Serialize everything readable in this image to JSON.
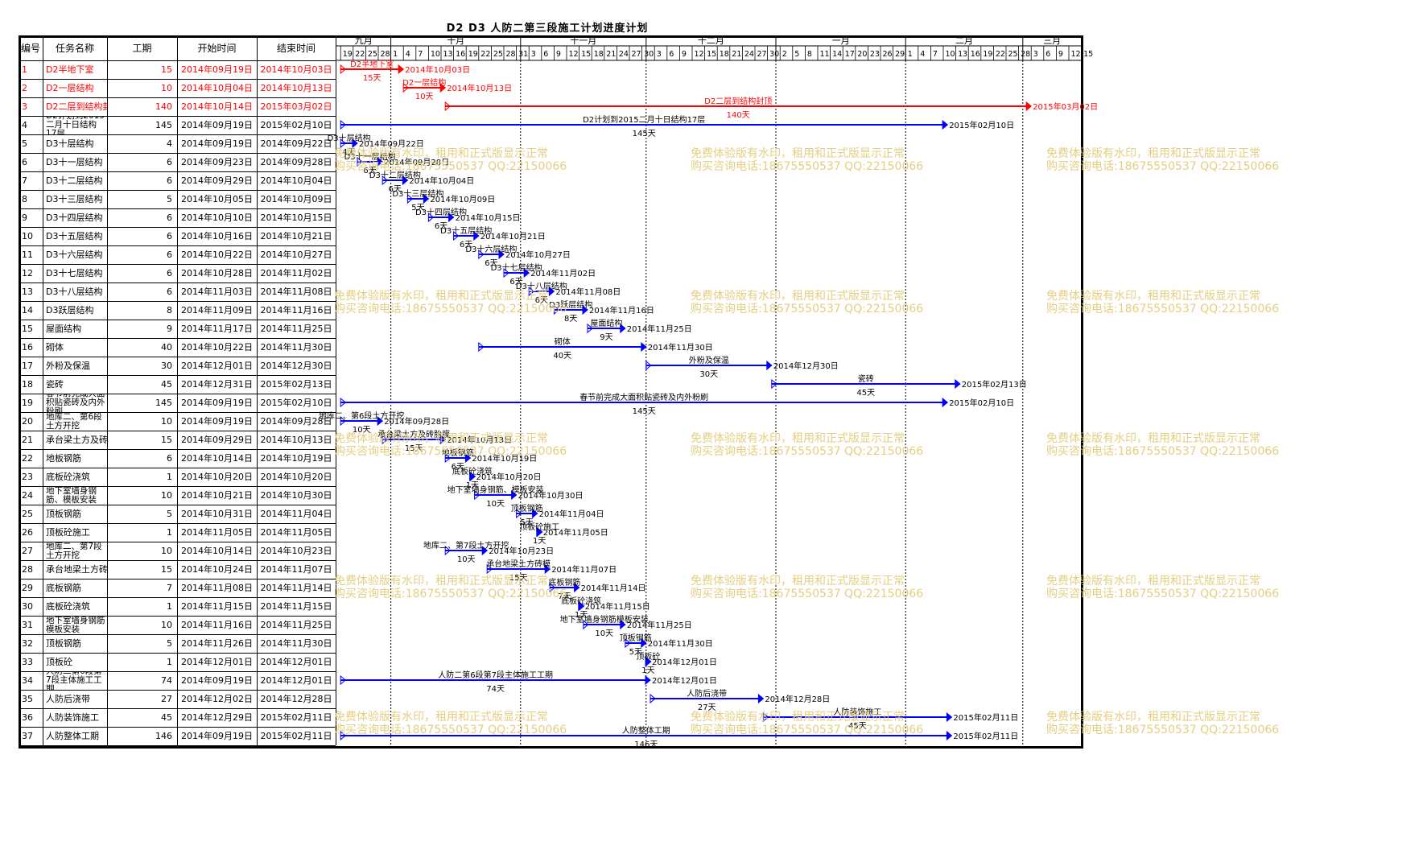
{
  "title": "D2  D3  人防二第三段施工计划进度计划",
  "headers": {
    "id": "编号",
    "name": "任务名称",
    "duration": "工期",
    "start": "开始时间",
    "end": "结束时间"
  },
  "months": [
    "九月",
    "十月",
    "十一月",
    "十二月",
    "一月",
    "二月",
    "三月"
  ],
  "day_ticks": [
    "19",
    "22",
    "25",
    "28",
    "1",
    "4",
    "7",
    "10",
    "13",
    "16",
    "19",
    "22",
    "25",
    "28",
    "31",
    "3",
    "6",
    "9",
    "12",
    "15",
    "18",
    "21",
    "24",
    "27",
    "30",
    "3",
    "6",
    "9",
    "12",
    "15",
    "18",
    "21",
    "24",
    "27",
    "30",
    "2",
    "5",
    "8",
    "11",
    "14",
    "17",
    "20",
    "23",
    "26",
    "29",
    "1",
    "4",
    "7",
    "10",
    "13",
    "16",
    "19",
    "22",
    "25",
    "28",
    "3",
    "6",
    "9",
    "12",
    "15"
  ],
  "tasks": [
    {
      "id": "1",
      "name": "D2半地下室",
      "duration": "15",
      "start": "2014年09月19日",
      "end": "2014年10月03日",
      "red": true,
      "bar_label": "D2半地下室",
      "end_label": "2014年10月03日",
      "dur_label": "15天"
    },
    {
      "id": "2",
      "name": "D2一层结构",
      "duration": "10",
      "start": "2014年10月04日",
      "end": "2014年10月13日",
      "red": true,
      "bar_label": "D2一层结构",
      "end_label": "2014年10月13日",
      "dur_label": "10天"
    },
    {
      "id": "3",
      "name": "D2二层到结构封顶",
      "duration": "140",
      "start": "2014年10月14日",
      "end": "2015年03月02日",
      "red": true,
      "bar_label": "D2二层到结构封顶",
      "end_label": "2015年03月02日",
      "dur_label": "140天"
    },
    {
      "id": "4",
      "name": "D2计划到2015二月十日结构17层",
      "duration": "145",
      "start": "2014年09月19日",
      "end": "2015年02月10日",
      "bar_label": "D2计划到2015二月十日结构17层",
      "end_label": "2015年02月10日",
      "dur_label": "145天"
    },
    {
      "id": "5",
      "name": "D3十层结构",
      "duration": "4",
      "start": "2014年09月19日",
      "end": "2014年09月22日",
      "bar_label": "D3十层结构",
      "end_label": "2014年09月22日",
      "dur_label": "4天"
    },
    {
      "id": "6",
      "name": "D3十一层结构",
      "duration": "6",
      "start": "2014年09月23日",
      "end": "2014年09月28日",
      "bar_label": "D3十一层结构",
      "end_label": "2014年09月28日",
      "dur_label": "6天"
    },
    {
      "id": "7",
      "name": "D3十二层结构",
      "duration": "6",
      "start": "2014年09月29日",
      "end": "2014年10月04日",
      "bar_label": "D3十二层结构",
      "end_label": "2014年10月04日",
      "dur_label": "6天"
    },
    {
      "id": "8",
      "name": "D3十三层结构",
      "duration": "5",
      "start": "2014年10月05日",
      "end": "2014年10月09日",
      "bar_label": "D3十三层结构",
      "end_label": "2014年10月09日",
      "dur_label": "5天"
    },
    {
      "id": "9",
      "name": "D3十四层结构",
      "duration": "6",
      "start": "2014年10月10日",
      "end": "2014年10月15日",
      "bar_label": "D3十四层结构",
      "end_label": "2014年10月15日",
      "dur_label": "6天"
    },
    {
      "id": "10",
      "name": "D3十五层结构",
      "duration": "6",
      "start": "2014年10月16日",
      "end": "2014年10月21日",
      "bar_label": "D3十五层结构",
      "end_label": "2014年10月21日",
      "dur_label": "6天"
    },
    {
      "id": "11",
      "name": "D3十六层结构",
      "duration": "6",
      "start": "2014年10月22日",
      "end": "2014年10月27日",
      "bar_label": "D3十六层结构",
      "end_label": "2014年10月27日",
      "dur_label": "6天"
    },
    {
      "id": "12",
      "name": "D3十七层结构",
      "duration": "6",
      "start": "2014年10月28日",
      "end": "2014年11月02日",
      "bar_label": "D3十七层结构",
      "end_label": "2014年11月02日",
      "dur_label": "6天"
    },
    {
      "id": "13",
      "name": "D3十八层结构",
      "duration": "6",
      "start": "2014年11月03日",
      "end": "2014年11月08日",
      "bar_label": "D3十八层结构",
      "end_label": "2014年11月08日",
      "dur_label": "6天"
    },
    {
      "id": "14",
      "name": "D3跃层结构",
      "duration": "8",
      "start": "2014年11月09日",
      "end": "2014年11月16日",
      "bar_label": "D3跃层结构",
      "end_label": "2014年11月16日",
      "dur_label": "8天"
    },
    {
      "id": "15",
      "name": "屋面结构",
      "duration": "9",
      "start": "2014年11月17日",
      "end": "2014年11月25日",
      "bar_label": "屋面结构",
      "end_label": "2014年11月25日",
      "dur_label": "9天"
    },
    {
      "id": "16",
      "name": "砌体",
      "duration": "40",
      "start": "2014年10月22日",
      "end": "2014年11月30日",
      "bar_label": "砌体",
      "end_label": "2014年11月30日",
      "dur_label": "40天"
    },
    {
      "id": "17",
      "name": "外粉及保温",
      "duration": "30",
      "start": "2014年12月01日",
      "end": "2014年12月30日",
      "bar_label": "外粉及保温",
      "end_label": "2014年12月30日",
      "dur_label": "30天"
    },
    {
      "id": "18",
      "name": "瓷砖",
      "duration": "45",
      "start": "2014年12月31日",
      "end": "2015年02月13日",
      "bar_label": "瓷砖",
      "end_label": "2015年02月13日",
      "dur_label": "45天"
    },
    {
      "id": "19",
      "name": "春节前完成大面积贴瓷砖及内外粉刷",
      "duration": "145",
      "start": "2014年09月19日",
      "end": "2015年02月10日",
      "bar_label": "春节前完成大面积贴瓷砖及内外粉刷",
      "end_label": "2015年02月10日",
      "dur_label": "145天"
    },
    {
      "id": "20",
      "name": "地库二、第6段土方开挖",
      "duration": "10",
      "start": "2014年09月19日",
      "end": "2014年09月28日",
      "bar_label": "地库二、第6段土方开挖",
      "end_label": "2014年09月28日",
      "dur_label": "10天"
    },
    {
      "id": "21",
      "name": "承台梁土方及砖胎膜",
      "duration": "15",
      "start": "2014年09月29日",
      "end": "2014年10月13日",
      "bar_label": "承台梁土方及砖胎膜",
      "end_label": "2014年10月13日",
      "dur_label": "15天"
    },
    {
      "id": "22",
      "name": "地板钢筋",
      "duration": "6",
      "start": "2014年10月14日",
      "end": "2014年10月19日",
      "bar_label": "地板钢筋",
      "end_label": "2014年10月19日",
      "dur_label": "6天"
    },
    {
      "id": "23",
      "name": "底板砼浇筑",
      "duration": "1",
      "start": "2014年10月20日",
      "end": "2014年10月20日",
      "bar_label": "底板砼浇筑",
      "end_label": "2014年10月20日",
      "dur_label": "1天"
    },
    {
      "id": "24",
      "name": "地下室墙身钢筋、模板安装",
      "duration": "10",
      "start": "2014年10月21日",
      "end": "2014年10月30日",
      "bar_label": "地下室墙身钢筋、模板安装",
      "end_label": "2014年10月30日",
      "dur_label": "10天"
    },
    {
      "id": "25",
      "name": "顶板钢筋",
      "duration": "5",
      "start": "2014年10月31日",
      "end": "2014年11月04日",
      "bar_label": "顶板钢筋",
      "end_label": "2014年11月04日",
      "dur_label": "5天"
    },
    {
      "id": "26",
      "name": "顶板砼施工",
      "duration": "1",
      "start": "2014年11月05日",
      "end": "2014年11月05日",
      "bar_label": "顶板砼施工",
      "end_label": "2014年11月05日",
      "dur_label": "1天"
    },
    {
      "id": "27",
      "name": "地库二、第7段土方开挖",
      "duration": "10",
      "start": "2014年10月14日",
      "end": "2014年10月23日",
      "bar_label": "地库二、第7段土方开挖",
      "end_label": "2014年10月23日",
      "dur_label": "10天"
    },
    {
      "id": "28",
      "name": "承台地梁土方砖模",
      "duration": "15",
      "start": "2014年10月24日",
      "end": "2014年11月07日",
      "bar_label": "承台地梁土方砖模",
      "end_label": "2014年11月07日",
      "dur_label": "15天"
    },
    {
      "id": "29",
      "name": "底板钢筋",
      "duration": "7",
      "start": "2014年11月08日",
      "end": "2014年11月14日",
      "bar_label": "底板钢筋",
      "end_label": "2014年11月14日",
      "dur_label": "7天"
    },
    {
      "id": "30",
      "name": "底板砼浇筑",
      "duration": "1",
      "start": "2014年11月15日",
      "end": "2014年11月15日",
      "bar_label": "底板砼浇筑",
      "end_label": "2014年11月15日",
      "dur_label": "1天"
    },
    {
      "id": "31",
      "name": "地下室墙身钢筋模板安装",
      "duration": "10",
      "start": "2014年11月16日",
      "end": "2014年11月25日",
      "bar_label": "地下室墙身钢筋模板安装",
      "end_label": "2014年11月25日",
      "dur_label": "10天"
    },
    {
      "id": "32",
      "name": "顶板钢筋",
      "duration": "5",
      "start": "2014年11月26日",
      "end": "2014年11月30日",
      "bar_label": "顶板钢筋",
      "end_label": "2014年11月30日",
      "dur_label": "5天"
    },
    {
      "id": "33",
      "name": "顶板砼",
      "duration": "1",
      "start": "2014年12月01日",
      "end": "2014年12月01日",
      "bar_label": "顶板砼",
      "end_label": "2014年12月01日",
      "dur_label": "1天"
    },
    {
      "id": "34",
      "name": "人防二第6段第7段主体施工工期",
      "duration": "74",
      "start": "2014年09月19日",
      "end": "2014年12月01日",
      "bar_label": "人防二第6段第7段主体施工工期",
      "end_label": "2014年12月01日",
      "dur_label": "74天"
    },
    {
      "id": "35",
      "name": "人防后浇带",
      "duration": "27",
      "start": "2014年12月02日",
      "end": "2014年12月28日",
      "bar_label": "人防后浇带",
      "end_label": "2014年12月28日",
      "dur_label": "27天"
    },
    {
      "id": "36",
      "name": "人防装饰施工",
      "duration": "45",
      "start": "2014年12月29日",
      "end": "2015年02月11日",
      "bar_label": "人防装饰施工",
      "end_label": "2015年02月11日",
      "dur_label": "45天"
    },
    {
      "id": "37",
      "name": "人防整体工期",
      "duration": "146",
      "start": "2014年09月19日",
      "end": "2015年02月11日",
      "bar_label": "人防整体工期",
      "end_label": "2015年02月11日",
      "dur_label": "146天"
    }
  ],
  "watermark": {
    "line1": "免费体验版有水印，租用和正式版显示正常",
    "line2": "购买咨询电话:18675550537 QQ:22150066"
  },
  "colors": {
    "bar_blue": "#0000ff",
    "bar_red": "#ff0000",
    "watermark": "#e3cc7a",
    "grid": "#000000"
  }
}
